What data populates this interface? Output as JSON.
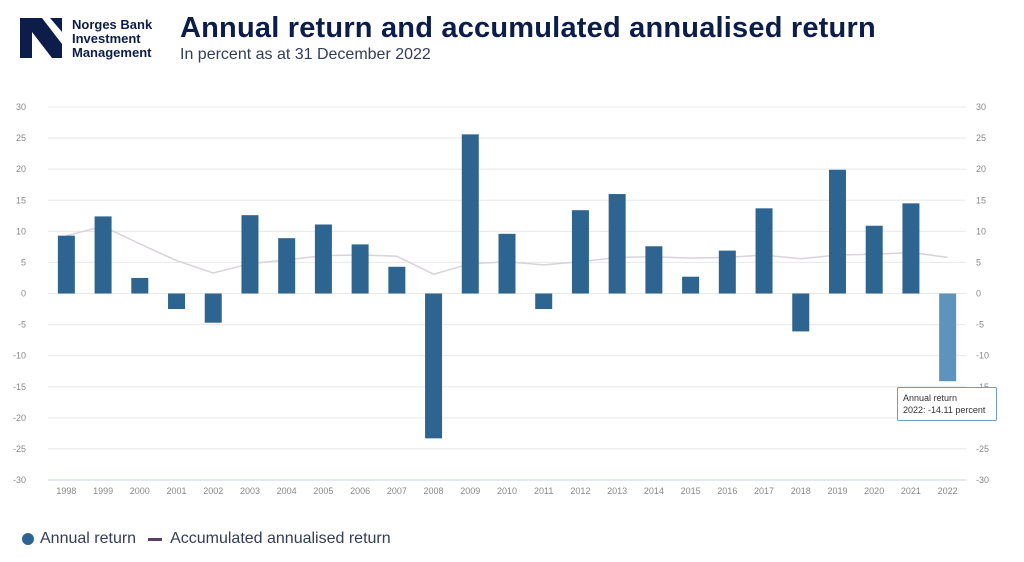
{
  "header": {
    "logo_lines": [
      "Norges Bank",
      "Investment",
      "Management"
    ],
    "title": "Annual return and accumulated annualised return",
    "subtitle": "In percent as at 31 December 2022"
  },
  "colors": {
    "bar": "#2e6590",
    "bar_highlight": "#5d93bd",
    "line": "#d9d2da",
    "legend_line": "#5a3d6b",
    "brand": "#0b1d48"
  },
  "chart_data": {
    "type": "bar",
    "categories": [
      "1998",
      "1999",
      "2000",
      "2001",
      "2002",
      "2003",
      "2004",
      "2005",
      "2006",
      "2007",
      "2008",
      "2009",
      "2010",
      "2011",
      "2012",
      "2013",
      "2014",
      "2015",
      "2016",
      "2017",
      "2018",
      "2019",
      "2020",
      "2021",
      "2022"
    ],
    "series": [
      {
        "name": "Annual return",
        "type": "bar",
        "values": [
          9.3,
          12.4,
          2.5,
          -2.5,
          -4.7,
          12.6,
          8.9,
          11.1,
          7.9,
          4.3,
          -23.3,
          25.6,
          9.6,
          -2.5,
          13.4,
          16.0,
          7.6,
          2.7,
          6.9,
          13.7,
          -6.1,
          19.9,
          10.9,
          14.5,
          -14.11
        ]
      },
      {
        "name": "Accumulated annualised return",
        "type": "line",
        "values": [
          9.3,
          10.8,
          8.0,
          5.3,
          3.3,
          4.8,
          5.4,
          6.1,
          6.2,
          6.0,
          3.1,
          4.8,
          5.1,
          4.6,
          5.1,
          5.8,
          5.9,
          5.7,
          5.8,
          6.2,
          5.6,
          6.2,
          6.3,
          6.6,
          5.8
        ]
      }
    ],
    "ylim": [
      -30,
      30
    ],
    "yticks": [
      -30,
      -25,
      -20,
      -15,
      -10,
      -5,
      0,
      5,
      10,
      15,
      20,
      25,
      30
    ],
    "grid": true,
    "legend": "bottom-left",
    "highlighted_index": 24
  },
  "legend": {
    "bar_label": "Annual return",
    "line_label": "Accumulated annualised return"
  },
  "tooltip": {
    "title": "Annual return",
    "value": "2022: -14.11 percent"
  }
}
